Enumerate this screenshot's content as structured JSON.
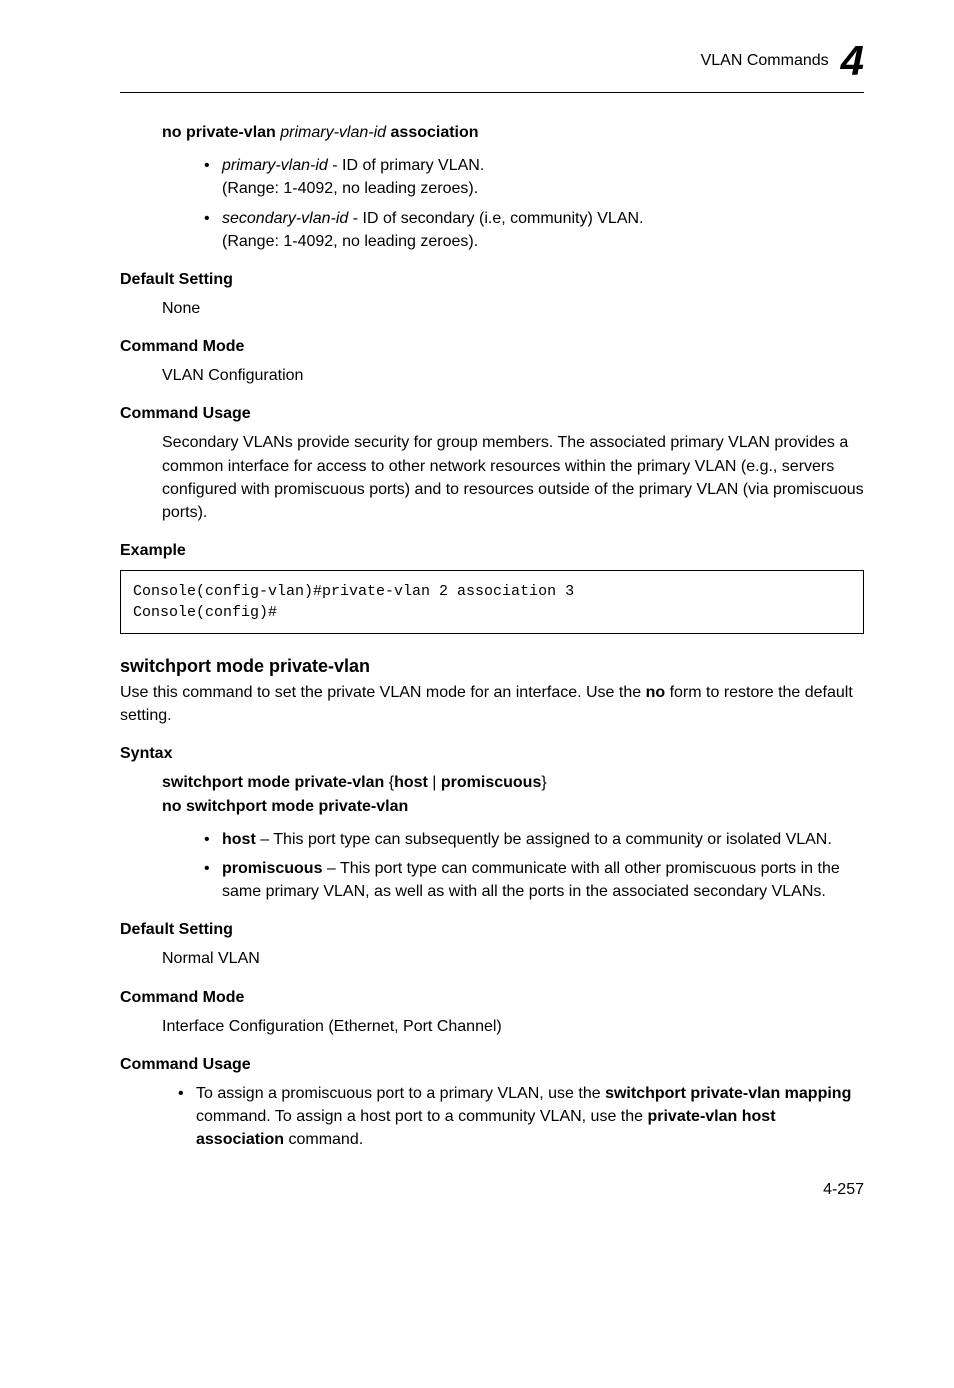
{
  "header": {
    "title": "VLAN Commands",
    "chapter_num": "4"
  },
  "cmd1": {
    "syntax_line": "no private-vlan",
    "syntax_param": "primary-vlan-id",
    "syntax_suffix": "association",
    "param1_name": "primary-vlan-id",
    "param1_desc": " - ID of primary VLAN.",
    "param1_range": "(Range: 1-4092, no leading zeroes).",
    "param2_name": "secondary-vlan-id",
    "param2_desc": " - ID of secondary (i.e, community) VLAN.",
    "param2_range": "(Range: 1-4092, no leading zeroes).",
    "default_head": "Default Setting",
    "default_val": "None",
    "mode_head": "Command Mode",
    "mode_val": "VLAN Configuration",
    "usage_head": "Command Usage",
    "usage_text": "Secondary VLANs provide security for group members. The associated primary VLAN provides a common interface for access to other network resources within the primary VLAN (e.g., servers configured with promiscuous ports) and to resources outside of the primary VLAN (via promiscuous ports).",
    "example_head": "Example",
    "example_code": "Console(config-vlan)#private-vlan 2 association 3\nConsole(config)#"
  },
  "cmd2": {
    "heading": "switchport mode private-vlan",
    "intro_pre": "Use this command to set the private VLAN mode for an interface. Use the ",
    "intro_bold": "no",
    "intro_post": " form to restore the default setting.",
    "syntax_head": "Syntax",
    "syntax1_pre": "switchport mode private-vlan",
    "syntax1_opts": " {host | promiscuous}",
    "syntax1_opt1": "host",
    "syntax1_opt2": "promiscuous",
    "syntax2": "no switchport mode private-vlan",
    "p1_name": "host",
    "p1_desc": " – This port type can subsequently be assigned to a community or isolated VLAN.",
    "p2_name": "promiscuous",
    "p2_desc": " – This port type can communicate with all other promiscuous ports in the same primary VLAN, as well as with all the ports in the associated secondary VLANs.",
    "default_head": "Default Setting",
    "default_val": "Normal VLAN",
    "mode_head": "Command Mode",
    "mode_val": "Interface Configuration (Ethernet, Port Channel)",
    "usage_head": "Command Usage",
    "usage_b1_pre": "To assign a promiscuous port to a primary VLAN, use the ",
    "usage_b1_bold1": "switchport private-vlan mapping",
    "usage_b1_mid": " command. To assign a host port to a community VLAN, use the ",
    "usage_b1_bold2": "private-vlan host association",
    "usage_b1_post": " command."
  },
  "page_number": "4-257"
}
